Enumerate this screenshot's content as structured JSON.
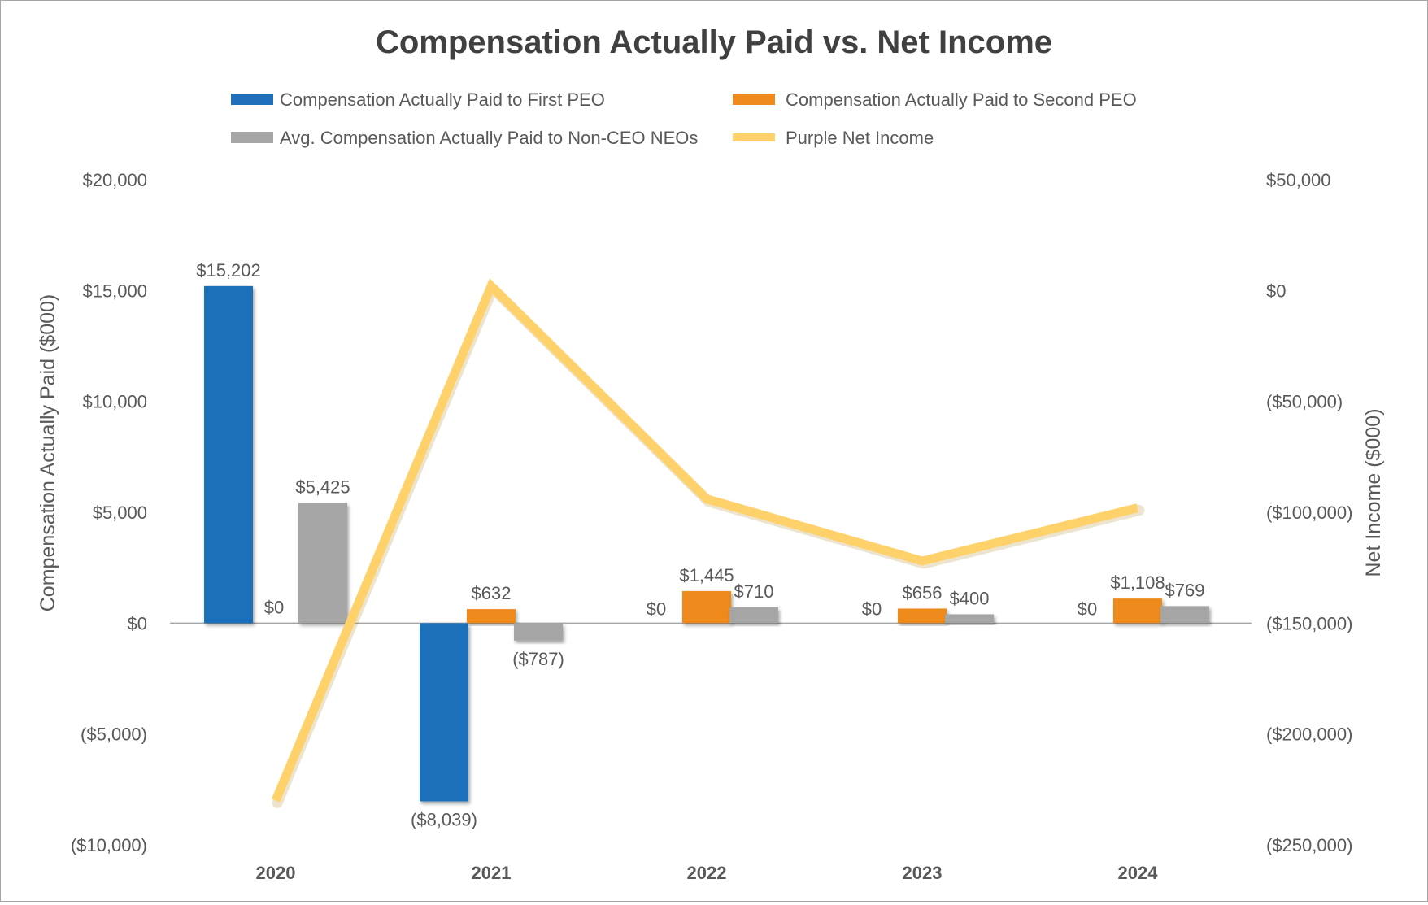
{
  "chart_data": {
    "type": "bar",
    "title": "Compensation Actually Paid vs. Net Income",
    "categories": [
      "2020",
      "2021",
      "2022",
      "2023",
      "2024"
    ],
    "ylabel_left": "Compensation Actually Paid ($000)",
    "ylabel_right": "Net Income ($000)",
    "ylim_left": [
      -10000,
      20000
    ],
    "ylim_right": [
      -250000,
      50000
    ],
    "yticks_left": [
      {
        "value": 20000,
        "label": "$20,000"
      },
      {
        "value": 15000,
        "label": "$15,000"
      },
      {
        "value": 10000,
        "label": "$10,000"
      },
      {
        "value": 5000,
        "label": "$5,000"
      },
      {
        "value": 0,
        "label": "$0"
      },
      {
        "value": -5000,
        "label": "($5,000)"
      },
      {
        "value": -10000,
        "label": "($10,000)"
      }
    ],
    "yticks_right": [
      {
        "value": 50000,
        "label": "$50,000"
      },
      {
        "value": 0,
        "label": "$0"
      },
      {
        "value": -50000,
        "label": "($50,000)"
      },
      {
        "value": -100000,
        "label": "($100,000)"
      },
      {
        "value": -150000,
        "label": "($150,000)"
      },
      {
        "value": -200000,
        "label": "($200,000)"
      },
      {
        "value": -250000,
        "label": "($250,000)"
      }
    ],
    "series": [
      {
        "name": "Compensation Actually Paid to First PEO",
        "type": "bar",
        "axis": "left",
        "color": "#1f6fba",
        "values": [
          15202,
          -8039,
          null,
          null,
          null
        ],
        "labels": [
          "$15,202",
          "($8,039)",
          null,
          null,
          null
        ]
      },
      {
        "name": "Compensation Actually Paid to Second PEO",
        "type": "bar",
        "axis": "left",
        "color": "#ee8a1e",
        "values": [
          0,
          632,
          1445,
          656,
          1108
        ],
        "labels": [
          "$0",
          "$632",
          "$1,445",
          "$656",
          "$1,108"
        ]
      },
      {
        "name": "Avg. Compensation Actually Paid to Non-CEO NEOs",
        "type": "bar",
        "axis": "left",
        "color": "#a5a5a5",
        "values": [
          5425,
          -787,
          710,
          400,
          769
        ],
        "labels": [
          "$5,425",
          "($787)",
          "$710",
          "$400",
          "$769"
        ]
      },
      {
        "name": "Purple Net Income",
        "type": "line",
        "axis": "right",
        "color": "#ffd16b",
        "values": [
          -230000,
          2000,
          -94000,
          -122000,
          -98000
        ]
      }
    ],
    "first_peo_zero_labels": [
      null,
      null,
      "$0",
      "$0",
      "$0"
    ]
  }
}
